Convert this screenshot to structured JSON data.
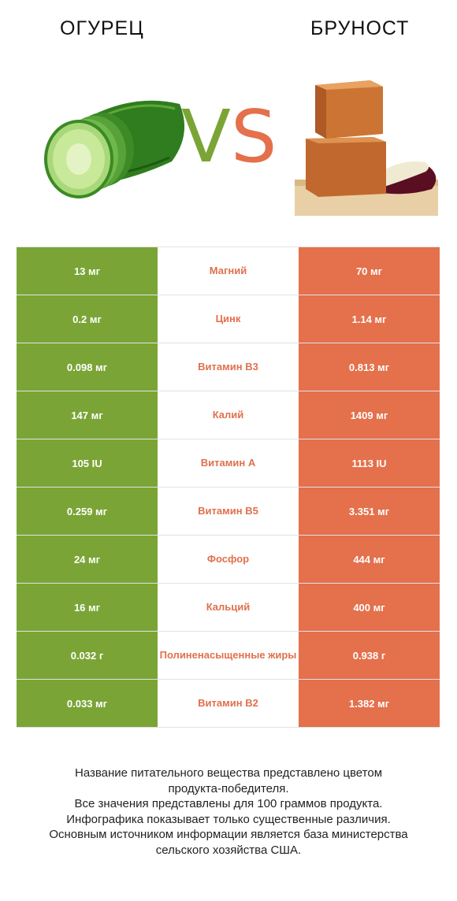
{
  "products": {
    "left": "ОГУРЕЦ",
    "right": "БРУНОСТ"
  },
  "vs": {
    "v": "V",
    "s": "S"
  },
  "colors": {
    "left": "#7aa536",
    "right": "#e4704c"
  },
  "rows": [
    {
      "a": "13 мг",
      "nutrient": "Магний",
      "b": "70 мг"
    },
    {
      "a": "0.2 мг",
      "nutrient": "Цинк",
      "b": "1.14 мг"
    },
    {
      "a": "0.098 мг",
      "nutrient": "Витамин B3",
      "b": "0.813 мг"
    },
    {
      "a": "147 мг",
      "nutrient": "Калий",
      "b": "1409 мг"
    },
    {
      "a": "105 IU",
      "nutrient": "Витамин A",
      "b": "1113 IU"
    },
    {
      "a": "0.259 мг",
      "nutrient": "Витамин B5",
      "b": "3.351 мг"
    },
    {
      "a": "24 мг",
      "nutrient": "Фосфор",
      "b": "444 мг"
    },
    {
      "a": "16 мг",
      "nutrient": "Кальций",
      "b": "400 мг"
    },
    {
      "a": "0.032 г",
      "nutrient": "Полиненасыщенные жиры",
      "b": "0.938 г"
    },
    {
      "a": "0.033 мг",
      "nutrient": "Витамин B2",
      "b": "1.382 мг"
    }
  ],
  "footer": [
    "Название питательного вещества представлено цветом",
    "продукта-победителя.",
    "Все значения представлены для 100 граммов продукта.",
    "Инфографика показывает только существенные различия.",
    "Основным источником информации является база министерства",
    "сельского хозяйства США."
  ]
}
